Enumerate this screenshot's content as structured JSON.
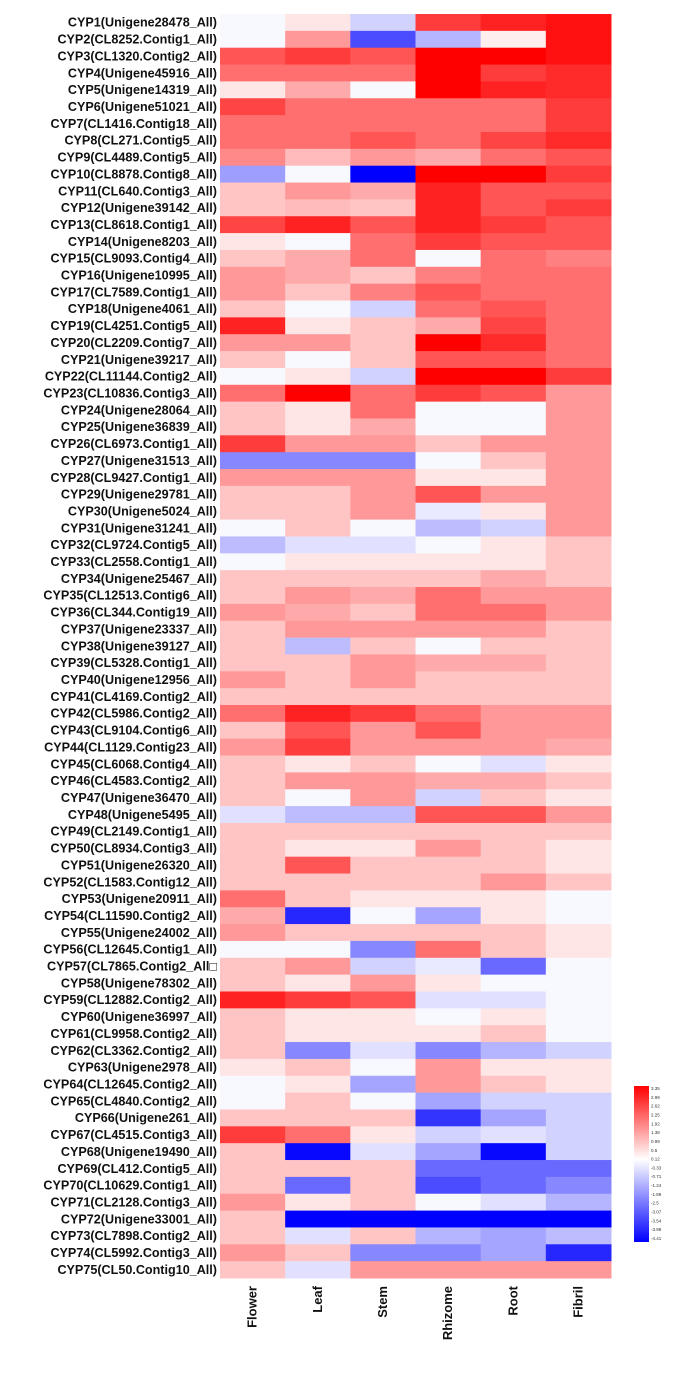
{
  "chart_data": {
    "type": "heatmap",
    "columns": [
      "Flower",
      "Leaf",
      "Stem",
      "Rhizome",
      "Root",
      "Fibril"
    ],
    "rows": [
      "CYP1(Unigene28478_All)",
      "CYP2(CL8252.Contig1_All)",
      "CYP3(CL1320.Contig2_All)",
      "CYP4(Unigene45916_All)",
      "CYP5(Unigene14319_All)",
      "CYP6(Unigene51021_All)",
      "CYP7(CL1416.Contig18_All)",
      "CYP8(CL271.Contig5_All)",
      "CYP9(CL4489.Contig5_All)",
      "CYP10(CL8878.Contig8_All)",
      "CYP11(CL640.Contig3_All)",
      "CYP12(Unigene39142_All)",
      "CYP13(CL8618.Contig1_All)",
      "CYP14(Unigene8203_All)",
      "CYP15(CL9093.Contig4_All)",
      "CYP16(Unigene10995_All)",
      "CYP17(CL7589.Contig1_All)",
      "CYP18(Unigene4061_All)",
      "CYP19(CL4251.Contig5_All)",
      "CYP20(CL2209.Contig7_All)",
      "CYP21(Unigene39217_All)",
      "CYP22(CL11144.Contig2_All)",
      "CYP23(CL10836.Contig3_All)",
      "CYP24(Unigene28064_All)",
      "CYP25(Unigene36839_All)",
      "CYP26(CL6973.Contig1_All)",
      "CYP27(Unigene31513_All)",
      "CYP28(CL9427.Contig1_All)",
      "CYP29(Unigene29781_All)",
      "CYP30(Unigene5024_All)",
      "CYP31(Unigene31241_All)",
      "CYP32(CL9724.Contig5_All)",
      "CYP33(CL2558.Contig1_All)",
      "CYP34(Unigene25467_All)",
      "CYP35(CL12513.Contig6_All)",
      "CYP36(CL344.Contig19_All)",
      "CYP37(Unigene23337_All)",
      "CYP38(Unigene39127_All)",
      "CYP39(CL5328.Contig1_All)",
      "CYP40(Unigene12956_All)",
      "CYP41(CL4169.Contig2_All)",
      "CYP42(CL5986.Contig2_All)",
      "CYP43(CL9104.Contig6_All)",
      "CYP44(CL1129.Contig23_All)",
      "CYP45(CL6068.Contig4_All)",
      "CYP46(CL4583.Contig2_All)",
      "CYP47(Unigene36470_All)",
      "CYP48(Unigene5495_All)",
      "CYP49(CL2149.Contig1_All)",
      "CYP50(CL8934.Contig3_All)",
      "CYP51(Unigene26320_All)",
      "CYP52(CL1583.Contig12_All)",
      "CYP53(Unigene20911_All)",
      "CYP54(CL11590.Contig2_All)",
      "CYP55(Unigene24002_All)",
      "CYP56(CL12645.Contig1_All)",
      "CYP57(CL7865.Contig2_All□",
      "CYP58(Unigene78302_All)",
      "CYP59(CL12882.Contig2_All)",
      "CYP60(Unigene36997_All)",
      "CYP61(CL9958.Contig2_All)",
      "CYP62(CL3362.Contig2_All)",
      "CYP63(Unigene2978_All)",
      "CYP64(CL12645.Contig2_All)",
      "CYP65(CL4840.Contig2_All)",
      "CYP66(Unigene261_All)",
      "CYP67(CL4515.Contig3_All)",
      "CYP68(Unigene19490_All)",
      "CYP69(CL412.Contig5_All)",
      "CYP70(CL10629.Contig1_All)",
      "CYP71(CL2128.Contig3_All)",
      "CYP72(Unigene33001_All)",
      "CYP73(CL7898.Contig2_All)",
      "CYP74(CL5992.Contig3_All)",
      "CYP75(CL50.Contig10_All)"
    ],
    "values": [
      [
        -0.1,
        0.3,
        -0.6,
        2.3,
        2.6,
        2.8
      ],
      [
        -0.1,
        1.2,
        -2.4,
        -1.0,
        0.2,
        2.8
      ],
      [
        2.0,
        2.3,
        2.0,
        3.0,
        3.0,
        2.8
      ],
      [
        1.7,
        1.7,
        1.7,
        3.0,
        2.3,
        2.5
      ],
      [
        0.3,
        1.0,
        -0.1,
        3.0,
        2.6,
        2.5
      ],
      [
        2.2,
        1.7,
        1.7,
        1.7,
        1.7,
        2.3
      ],
      [
        1.7,
        1.7,
        1.7,
        1.7,
        1.7,
        2.3
      ],
      [
        1.7,
        1.7,
        2.0,
        1.7,
        2.2,
        2.5
      ],
      [
        1.4,
        0.8,
        1.2,
        1.0,
        1.7,
        2.0
      ],
      [
        -1.3,
        -0.1,
        -3.4,
        3.0,
        3.0,
        2.3
      ],
      [
        0.7,
        1.2,
        1.0,
        2.6,
        2.0,
        2.0
      ],
      [
        0.7,
        0.8,
        0.7,
        2.6,
        2.0,
        2.3
      ],
      [
        2.2,
        2.6,
        2.0,
        2.6,
        2.3,
        2.0
      ],
      [
        0.3,
        -0.1,
        1.7,
        2.3,
        2.0,
        2.0
      ],
      [
        0.7,
        1.0,
        1.7,
        -0.1,
        1.7,
        1.5
      ],
      [
        1.2,
        1.0,
        0.7,
        1.5,
        1.7,
        1.7
      ],
      [
        1.2,
        0.7,
        1.5,
        2.0,
        1.7,
        1.7
      ],
      [
        0.7,
        -0.1,
        -0.6,
        1.7,
        2.0,
        1.7
      ],
      [
        2.6,
        0.3,
        0.7,
        1.0,
        2.2,
        1.7
      ],
      [
        1.2,
        1.2,
        0.7,
        3.0,
        2.5,
        1.7
      ],
      [
        0.7,
        -0.1,
        0.7,
        2.0,
        2.0,
        1.7
      ],
      [
        -0.1,
        0.3,
        -0.6,
        3.0,
        3.0,
        2.3
      ],
      [
        1.7,
        3.0,
        1.7,
        2.3,
        2.0,
        1.2
      ],
      [
        0.7,
        0.3,
        1.7,
        -0.1,
        -0.1,
        1.2
      ],
      [
        0.7,
        0.3,
        1.0,
        -0.1,
        -0.1,
        1.2
      ],
      [
        2.3,
        1.2,
        1.2,
        0.7,
        1.2,
        1.2
      ],
      [
        -1.6,
        -1.6,
        -1.6,
        -0.1,
        0.7,
        1.2
      ],
      [
        1.2,
        1.2,
        1.2,
        0.3,
        0.3,
        1.2
      ],
      [
        0.7,
        0.7,
        1.2,
        2.0,
        1.2,
        1.2
      ],
      [
        0.7,
        0.7,
        1.2,
        -0.3,
        0.3,
        1.2
      ],
      [
        -0.1,
        0.7,
        -0.1,
        -0.9,
        -0.6,
        1.2
      ],
      [
        -0.9,
        -0.4,
        -0.4,
        -0.1,
        0.3,
        0.7
      ],
      [
        -0.1,
        0.3,
        0.3,
        0.3,
        0.3,
        0.7
      ],
      [
        0.7,
        0.7,
        0.7,
        0.7,
        1.0,
        0.7
      ],
      [
        0.7,
        1.2,
        1.0,
        1.7,
        1.2,
        1.2
      ],
      [
        1.2,
        1.0,
        0.7,
        1.7,
        1.7,
        1.2
      ],
      [
        0.7,
        1.2,
        1.2,
        1.2,
        1.2,
        0.7
      ],
      [
        0.7,
        -0.9,
        0.7,
        -0.1,
        0.7,
        0.7
      ],
      [
        0.7,
        0.7,
        1.2,
        1.0,
        1.0,
        0.7
      ],
      [
        1.2,
        0.7,
        1.2,
        0.7,
        0.7,
        0.7
      ],
      [
        0.7,
        0.7,
        0.7,
        0.7,
        0.7,
        0.7
      ],
      [
        1.7,
        2.6,
        2.3,
        1.7,
        1.2,
        1.2
      ],
      [
        0.7,
        2.0,
        1.2,
        2.0,
        1.2,
        1.2
      ],
      [
        1.2,
        2.3,
        1.2,
        1.2,
        1.2,
        1.0
      ],
      [
        0.7,
        0.3,
        0.7,
        -0.1,
        -0.4,
        0.3
      ],
      [
        0.7,
        1.2,
        1.2,
        1.0,
        1.0,
        0.7
      ],
      [
        0.7,
        -0.1,
        1.2,
        -0.6,
        0.7,
        0.3
      ],
      [
        -0.4,
        -0.9,
        -0.9,
        2.0,
        2.0,
        1.2
      ],
      [
        0.7,
        0.7,
        0.7,
        0.7,
        0.7,
        0.7
      ],
      [
        0.7,
        0.3,
        0.3,
        1.2,
        0.7,
        0.3
      ],
      [
        0.7,
        2.0,
        0.7,
        0.7,
        0.7,
        0.3
      ],
      [
        0.7,
        0.7,
        0.7,
        0.7,
        1.2,
        0.7
      ],
      [
        1.7,
        0.7,
        0.3,
        0.3,
        0.3,
        -0.1
      ],
      [
        1.0,
        -2.9,
        -0.1,
        -1.2,
        0.3,
        -0.1
      ],
      [
        1.2,
        0.7,
        0.7,
        0.7,
        0.7,
        0.3
      ],
      [
        -0.1,
        -0.1,
        -1.6,
        1.7,
        0.7,
        0.3
      ],
      [
        0.7,
        1.2,
        -0.6,
        -0.3,
        -2.0,
        -0.1
      ],
      [
        0.7,
        0.3,
        1.2,
        0.3,
        -0.1,
        -0.1
      ],
      [
        2.6,
        2.3,
        2.0,
        -0.4,
        -0.4,
        -0.1
      ],
      [
        0.7,
        0.3,
        0.3,
        -0.1,
        0.3,
        -0.1
      ],
      [
        0.7,
        0.3,
        0.3,
        0.3,
        0.7,
        -0.1
      ],
      [
        0.7,
        -1.6,
        -0.4,
        -1.6,
        -1.0,
        -0.6
      ],
      [
        0.3,
        0.7,
        -0.1,
        1.2,
        0.3,
        0.3
      ],
      [
        -0.1,
        0.3,
        -1.2,
        1.2,
        0.7,
        0.3
      ],
      [
        -0.1,
        0.7,
        -0.1,
        -1.2,
        -0.6,
        -0.6
      ],
      [
        0.7,
        0.7,
        0.7,
        -2.7,
        -1.2,
        -0.6
      ],
      [
        2.3,
        1.7,
        0.3,
        -0.6,
        -0.4,
        -0.6
      ],
      [
        0.7,
        -3.3,
        -0.4,
        -1.2,
        -3.3,
        -0.6
      ],
      [
        0.7,
        0.7,
        0.7,
        -2.0,
        -2.0,
        -2.0
      ],
      [
        0.7,
        -2.0,
        0.7,
        -2.4,
        -2.0,
        -1.6
      ],
      [
        1.2,
        0.3,
        0.7,
        -0.1,
        -0.4,
        -1.0
      ],
      [
        0.7,
        -3.4,
        -3.4,
        -3.4,
        -3.4,
        -3.4
      ],
      [
        0.7,
        -0.4,
        0.7,
        -1.0,
        -1.2,
        -0.9
      ],
      [
        1.2,
        0.7,
        -1.6,
        -1.6,
        -1.2,
        -2.9
      ],
      [
        0.7,
        -0.4,
        1.2,
        1.2,
        1.2,
        1.2
      ]
    ],
    "xlabel": "",
    "ylabel": "",
    "legend": {
      "position": "bottom-right",
      "colors": [
        "#ff0000",
        "#ffffff",
        "#0000ff"
      ],
      "ticks": [
        "3.35",
        "2.99",
        "2.62",
        "2.25",
        "1.92",
        "1.38",
        "0.99",
        "0.5",
        "0.12",
        "-0.33",
        "-0.71",
        "-1.24",
        "-1.89",
        "-2.5",
        "-3.07",
        "-3.54",
        "-3.98",
        "-4.41"
      ]
    }
  }
}
